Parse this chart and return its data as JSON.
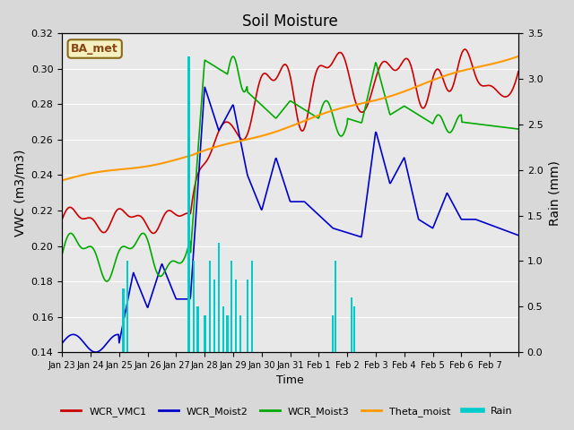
{
  "title": "Soil Moisture",
  "xlabel": "Time",
  "ylabel_left": "VWC (m3/m3)",
  "ylabel_right": "Rain (mm)",
  "ylim_left": [
    0.14,
    0.32
  ],
  "ylim_right": [
    0.0,
    3.5
  ],
  "yticks_left": [
    0.14,
    0.16,
    0.18,
    0.2,
    0.22,
    0.24,
    0.26,
    0.28,
    0.3,
    0.32
  ],
  "yticks_right": [
    0.0,
    0.5,
    1.0,
    1.5,
    2.0,
    2.5,
    3.0,
    3.5
  ],
  "background_color": "#d8d8d8",
  "plot_bg_color": "#e8e8e8",
  "legend_label": "BA_met",
  "series_colors": {
    "WCR_VMC1": "#cc0000",
    "WCR_Moist2": "#0000cc",
    "WCR_Moist3": "#00aa00",
    "Theta_moist": "#ff9900",
    "Rain": "#00cccc"
  },
  "x_tick_positions": [
    0,
    1,
    2,
    3,
    4,
    5,
    6,
    7,
    8,
    9,
    10,
    11,
    12,
    13,
    14,
    15,
    16
  ],
  "x_tick_labels": [
    "Jan 23",
    "Jan 24",
    "Jan 25",
    "Jan 26",
    "Jan 27",
    "Jan 28",
    "Jan 29",
    "Jan 30",
    "Jan 31",
    "Feb 1",
    "Feb 2",
    "Feb 3",
    "Feb 4",
    "Feb 5",
    "Feb 6",
    "Feb 7",
    ""
  ],
  "n_days": 16
}
